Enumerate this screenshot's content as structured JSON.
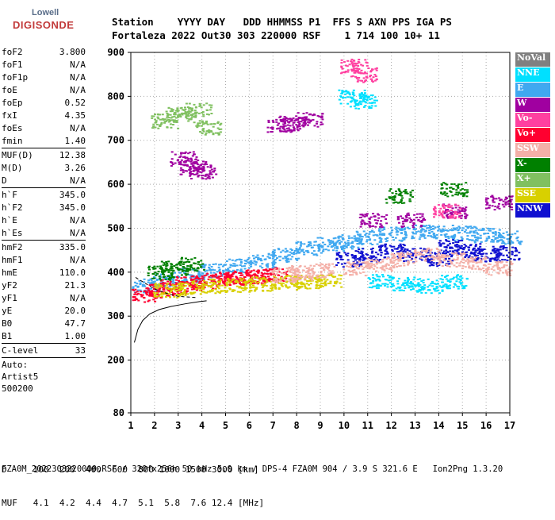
{
  "logo": {
    "line1": "Lowell",
    "line2": "DIGISONDE"
  },
  "header": {
    "labels": "Station    YYYY DAY   DDD HHMMSS P1  FFS S AXN PPS IGA PS",
    "values": "Fortaleza 2022 Out30 303 220000 RSF    1 714 100 10+ 11"
  },
  "params": {
    "group1": [
      {
        "k": "foF2",
        "v": "3.800"
      },
      {
        "k": "foF1",
        "v": "N/A"
      },
      {
        "k": "foF1p",
        "v": "N/A"
      },
      {
        "k": "foE",
        "v": "N/A"
      },
      {
        "k": "foEp",
        "v": "0.52"
      },
      {
        "k": "fxI",
        "v": "4.35"
      },
      {
        "k": "foEs",
        "v": "N/A"
      },
      {
        "k": "fmin",
        "v": "1.40"
      }
    ],
    "group2": [
      {
        "k": "MUF(D)",
        "v": "12.38"
      },
      {
        "k": "M(D)",
        "v": "3.26"
      },
      {
        "k": "D",
        "v": "N/A"
      }
    ],
    "group3": [
      {
        "k": "h`F",
        "v": "345.0"
      },
      {
        "k": "h`F2",
        "v": "345.0"
      },
      {
        "k": "h`E",
        "v": "N/A"
      },
      {
        "k": "h`Es",
        "v": "N/A"
      }
    ],
    "group4": [
      {
        "k": "hmF2",
        "v": "335.0"
      },
      {
        "k": "hmF1",
        "v": "N/A"
      },
      {
        "k": "hmE",
        "v": "110.0"
      },
      {
        "k": "yF2",
        "v": "21.3"
      },
      {
        "k": "yF1",
        "v": "N/A"
      },
      {
        "k": "yE",
        "v": "20.0"
      },
      {
        "k": "B0",
        "v": "47.7"
      },
      {
        "k": "B1",
        "v": "1.00"
      }
    ],
    "clevel": {
      "k": "C-level",
      "v": "33"
    },
    "auto": [
      "Auto:",
      "Artist5",
      "500200"
    ]
  },
  "legend": [
    {
      "label": "NoVal",
      "color": "#808080"
    },
    {
      "label": "NNE",
      "color": "#00e0ff"
    },
    {
      "label": "E",
      "color": "#40a8f0"
    },
    {
      "label": "W",
      "color": "#a000a0"
    },
    {
      "label": "Vo-",
      "color": "#ff40a0"
    },
    {
      "label": "Vo+",
      "color": "#ff0030"
    },
    {
      "label": "SSW",
      "color": "#f4b0a8"
    },
    {
      "label": "X-",
      "color": "#008000"
    },
    {
      "label": "X+",
      "color": "#80c060"
    },
    {
      "label": "SSE",
      "color": "#d8d000"
    },
    {
      "label": "NNW",
      "color": "#1010d0"
    }
  ],
  "footer": {
    "line1": "D     100  200  400  600  800 1000 1500 3000 [km]",
    "line2": "MUF   4.1  4.2  4.4  4.7  5.1  5.8  7.6 12.4 [MHz]",
    "line3": "FZA0M_2022303220000.RSF / 320fx256h 50 kHz 5.0 km / DPS-4 FZA0M 904 / 3.9 S 321.6 E   Ion2Png 1.3.20"
  },
  "chart_data": {
    "type": "scatter",
    "xlim": [
      1,
      17
    ],
    "ylim": [
      80,
      900
    ],
    "x_ticks": [
      1,
      2,
      3,
      4,
      5,
      6,
      7,
      8,
      9,
      10,
      11,
      12,
      13,
      14,
      15,
      16,
      17
    ],
    "y_ticks": [
      80,
      200,
      300,
      400,
      500,
      600,
      700,
      800,
      900
    ],
    "grid": true,
    "profile_curve": {
      "x": [
        1.15,
        1.3,
        1.5,
        1.8,
        2.2,
        2.7,
        3.3,
        3.9,
        4.2
      ],
      "y": [
        240,
        270,
        290,
        305,
        315,
        322,
        328,
        333,
        335
      ]
    },
    "trace_curve": {
      "x": [
        1.2,
        1.6,
        2.0,
        2.5,
        3.0,
        3.8
      ],
      "y": [
        388,
        375,
        362,
        352,
        345,
        342
      ]
    },
    "series": [
      {
        "name": "E",
        "color": "#40a8f0",
        "x": [
          1.6,
          2.5,
          3.5,
          4.5,
          5.5,
          6.5,
          7.5,
          8.5,
          9.4,
          10.2,
          11.0,
          12.0,
          13.0,
          14.0,
          15.0,
          16.0,
          16.9
        ],
        "y": [
          370,
          385,
          395,
          405,
          415,
          428,
          440,
          455,
          465,
          470,
          480,
          488,
          492,
          492,
          490,
          485,
          480
        ]
      },
      {
        "name": "Vo+",
        "color": "#ff0030",
        "x": [
          1.6,
          2.2,
          2.8,
          3.4,
          4.0,
          4.6,
          5.2,
          5.8,
          6.4,
          7.0
        ],
        "y": [
          350,
          360,
          368,
          375,
          380,
          385,
          388,
          390,
          392,
          395
        ]
      },
      {
        "name": "SSE",
        "color": "#d8d000",
        "x": [
          2.5,
          3.5,
          4.5,
          5.5,
          6.5,
          7.5,
          8.5,
          9.3
        ],
        "y": [
          360,
          365,
          370,
          372,
          375,
          378,
          380,
          382
        ]
      },
      {
        "name": "NNW",
        "color": "#1010d0",
        "x": [
          10.2,
          11.0,
          12.0,
          13.0,
          14.0,
          14.5,
          15.2,
          16.0,
          16.8
        ],
        "y": [
          430,
          440,
          450,
          440,
          430,
          460,
          450,
          440,
          445
        ]
      },
      {
        "name": "W",
        "color": "#a000a0",
        "x": [
          3.2,
          3.6,
          4.0,
          7.3,
          7.8,
          8.5,
          11.2,
          12.8,
          14.6,
          16.5
        ],
        "y": [
          660,
          640,
          630,
          735,
          740,
          748,
          520,
          520,
          540,
          560
        ]
      },
      {
        "name": "SSW",
        "color": "#f4b0a8",
        "x": [
          7.5,
          8.2,
          9.0,
          10.5,
          11.5,
          12.5,
          13.5,
          14.5,
          15.5,
          16.5
        ],
        "y": [
          395,
          400,
          405,
          410,
          420,
          430,
          440,
          430,
          420,
          410
        ]
      },
      {
        "name": "NNE",
        "color": "#00e0ff",
        "x": [
          10.3,
          10.8,
          11.5,
          12.6,
          13.6,
          14.6
        ],
        "y": [
          800,
          790,
          380,
          375,
          370,
          380
        ]
      },
      {
        "name": "X-",
        "color": "#008000",
        "x": [
          2.2,
          2.8,
          3.5,
          12.3,
          14.6
        ],
        "y": [
          400,
          410,
          420,
          575,
          590
        ]
      },
      {
        "name": "X+",
        "color": "#80c060",
        "x": [
          2.4,
          3.0,
          3.8,
          4.2
        ],
        "y": [
          745,
          760,
          770,
          730
        ]
      },
      {
        "name": "Vo-",
        "color": "#ff40a0",
        "x": [
          10.4,
          10.8,
          14.3
        ],
        "y": [
          870,
          850,
          540
        ]
      }
    ]
  }
}
